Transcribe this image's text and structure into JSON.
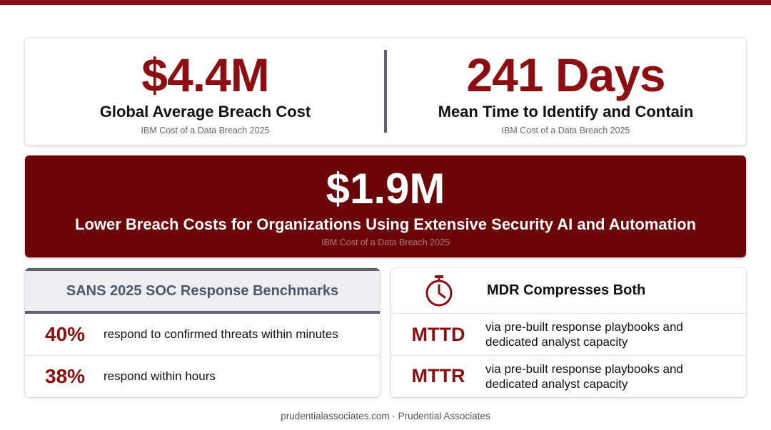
{
  "stats": [
    {
      "value": "$4.4M",
      "label": "Global Average Breach Cost",
      "source": "IBM Cost of a Data Breach 2025"
    },
    {
      "value": "241 Days",
      "label": "Mean Time to Identify and Contain",
      "source": "IBM Cost of a Data Breach 2025"
    }
  ],
  "banner": {
    "value": "$1.9M",
    "label": "Lower Breach Costs for Organizations Using Extensive Security AI and Automation",
    "source": "IBM Cost of a Data Breach 2025"
  },
  "sans": {
    "title": "SANS 2025 SOC Response Benchmarks",
    "rows": [
      {
        "pct": "40%",
        "text": "respond to confirmed threats within minutes"
      },
      {
        "pct": "38%",
        "text": "respond within hours"
      }
    ]
  },
  "mdr": {
    "icon": "stopwatch-icon",
    "title": "MDR Compresses Both",
    "rows": [
      {
        "abbr": "MTTD",
        "text": "via pre-built response playbooks and dedicated analyst capacity"
      },
      {
        "abbr": "MTTR",
        "text": "via pre-built response playbooks and dedicated analyst capacity"
      }
    ]
  },
  "footer": "prudentialassociates.com · Prudential Associates",
  "colors": {
    "accent": "#8b0f12",
    "banner": "#6a0406",
    "slate": "#5a6272"
  }
}
